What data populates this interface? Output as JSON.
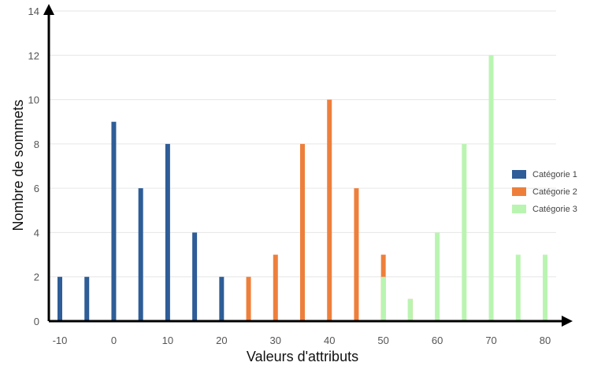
{
  "chart_data": {
    "type": "bar",
    "xlabel": "Valeurs d'attributs",
    "ylabel": "Nombre de sommets",
    "xlim": [
      -10,
      80
    ],
    "ylim": [
      0,
      14
    ],
    "x_ticks": [
      "-10",
      "0",
      "10",
      "20",
      "30",
      "40",
      "50",
      "60",
      "70",
      "80"
    ],
    "y_ticks": [
      "0",
      "2",
      "4",
      "6",
      "8",
      "10",
      "12",
      "14"
    ],
    "grid": true,
    "legend_position": "right",
    "series": [
      {
        "name": "Catégorie 1",
        "color": "#2e5d97",
        "x": [
          -10,
          -5,
          0,
          5,
          10,
          15,
          20
        ],
        "values": [
          2,
          2,
          9,
          6,
          8,
          4,
          2
        ]
      },
      {
        "name": "Catégorie 2",
        "color": "#ee7f3b",
        "x": [
          25,
          30,
          35,
          40,
          45,
          50,
          55
        ],
        "values": [
          2,
          3,
          8,
          10,
          6,
          3,
          1
        ]
      },
      {
        "name": "Catégorie 3",
        "color": "#b9f5b1",
        "x": [
          50,
          55,
          60,
          65,
          70,
          75,
          80
        ],
        "values": [
          2,
          1,
          4,
          8,
          12,
          3,
          3
        ]
      }
    ]
  }
}
